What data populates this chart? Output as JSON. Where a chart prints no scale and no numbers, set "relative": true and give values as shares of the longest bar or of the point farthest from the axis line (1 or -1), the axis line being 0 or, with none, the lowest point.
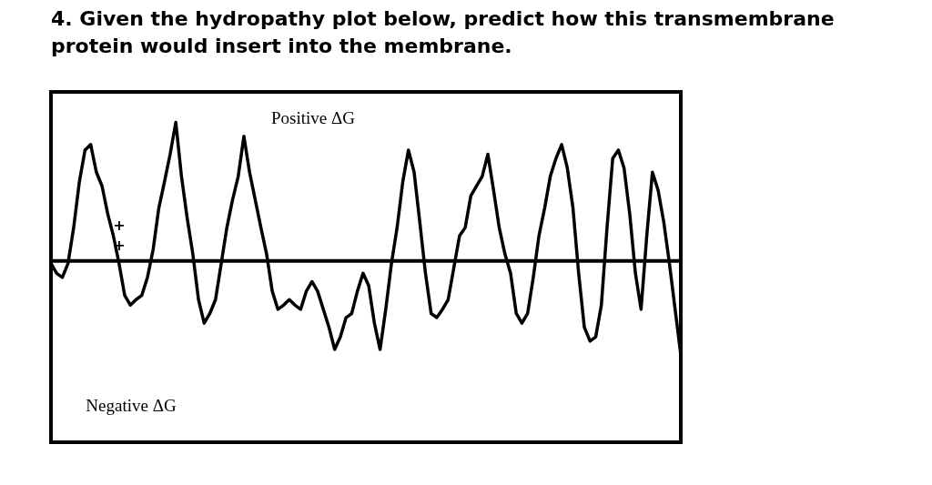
{
  "chart_data": {
    "type": "line",
    "title": "4. Given the hydropathy plot below, predict how this transmembrane protein would insert into the membrane.",
    "relative": true,
    "marker": "none",
    "line_style": "solid",
    "legend": false,
    "annotations": [
      "Positive ΔG",
      "Negative ΔG",
      "+",
      "+"
    ],
    "categories": [
      null,
      null,
      null,
      null,
      null,
      null,
      null,
      null,
      null,
      null,
      null,
      null,
      null,
      null,
      null,
      null,
      null,
      null,
      null,
      null,
      null,
      null,
      null,
      null,
      null,
      null,
      null,
      null,
      null,
      null,
      null,
      null,
      null,
      null,
      null,
      null,
      null,
      null,
      null,
      null,
      null,
      null,
      null,
      null,
      null,
      null,
      null,
      null,
      null,
      null,
      null,
      null,
      null,
      null,
      null,
      null,
      null,
      null,
      null,
      null,
      null,
      null,
      null,
      null,
      null,
      null,
      null,
      null,
      null,
      null,
      null,
      null,
      null,
      null,
      null,
      null,
      null,
      null,
      null,
      null,
      null,
      null,
      null,
      null,
      null,
      null,
      null,
      null,
      null,
      null,
      null,
      null,
      null,
      null,
      null,
      null,
      null,
      null,
      null,
      null,
      null,
      null,
      null,
      null,
      null,
      null,
      null,
      null,
      null,
      null,
      null,
      null
    ],
    "series": [
      {
        "color": "#000000",
        "values": [
          -0.02,
          -0.09,
          -0.12,
          -0.02,
          0.24,
          0.57,
          0.8,
          0.84,
          0.64,
          0.54,
          0.34,
          0.18,
          -0.02,
          -0.25,
          -0.32,
          -0.28,
          -0.25,
          -0.12,
          0.08,
          0.38,
          0.57,
          0.77,
          1,
          0.61,
          0.31,
          0.05,
          -0.28,
          -0.45,
          -0.38,
          -0.28,
          -0.02,
          0.24,
          0.44,
          0.61,
          0.9,
          0.64,
          0.44,
          0.24,
          0.05,
          -0.22,
          -0.35,
          -0.32,
          -0.28,
          -0.32,
          -0.35,
          -0.22,
          -0.15,
          -0.22,
          -0.35,
          -0.48,
          -0.64,
          -0.55,
          -0.41,
          -0.38,
          -0.22,
          -0.09,
          -0.18,
          -0.45,
          -0.64,
          -0.35,
          -0.02,
          0.24,
          0.57,
          0.8,
          0.64,
          0.28,
          -0.09,
          -0.38,
          -0.41,
          -0.35,
          -0.28,
          -0.05,
          0.18,
          0.24,
          0.47,
          0.54,
          0.61,
          0.77,
          0.51,
          0.24,
          0.05,
          -0.09,
          -0.38,
          -0.45,
          -0.38,
          -0.12,
          0.18,
          0.38,
          0.61,
          0.74,
          0.84,
          0.67,
          0.38,
          -0.09,
          -0.48,
          -0.58,
          -0.55,
          -0.32,
          0.24,
          0.74,
          0.8,
          0.67,
          0.34,
          -0.09,
          -0.35,
          0.18,
          0.64,
          0.51,
          0.28,
          -0.02,
          -0.35,
          -0.68
        ]
      }
    ]
  }
}
